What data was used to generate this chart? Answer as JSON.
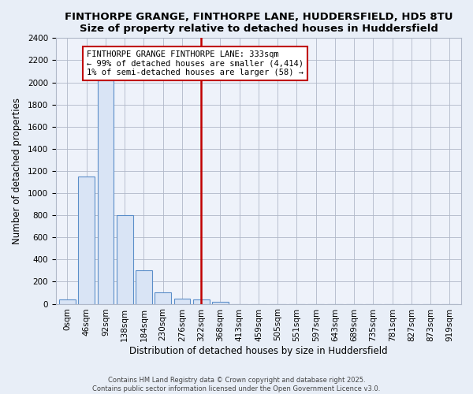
{
  "title": "FINTHORPE GRANGE, FINTHORPE LANE, HUDDERSFIELD, HD5 8TU",
  "subtitle": "Size of property relative to detached houses in Huddersfield",
  "xlabel": "Distribution of detached houses by size in Huddersfield",
  "ylabel": "Number of detached properties",
  "bar_labels": [
    "0sqm",
    "46sqm",
    "92sqm",
    "138sqm",
    "184sqm",
    "230sqm",
    "276sqm",
    "322sqm",
    "368sqm",
    "413sqm",
    "459sqm",
    "505sqm",
    "551sqm",
    "597sqm",
    "643sqm",
    "689sqm",
    "735sqm",
    "781sqm",
    "827sqm",
    "873sqm",
    "919sqm"
  ],
  "bar_values": [
    40,
    1150,
    2020,
    800,
    300,
    105,
    50,
    40,
    20,
    0,
    0,
    0,
    0,
    0,
    0,
    0,
    0,
    0,
    0,
    0,
    0
  ],
  "highlight_index": 7,
  "annotation_line1": "FINTHORPE GRANGE FINTHORPE LANE: 333sqm",
  "annotation_line2": "← 99% of detached houses are smaller (4,414)",
  "annotation_line3": "1% of semi-detached houses are larger (58) →",
  "ylim": [
    0,
    2400
  ],
  "yticks": [
    0,
    200,
    400,
    600,
    800,
    1000,
    1200,
    1400,
    1600,
    1800,
    2000,
    2200,
    2400
  ],
  "bar_color": "#d9e4f5",
  "bar_edge_color": "#5b8ec9",
  "highlight_color": "#c00000",
  "bg_color": "#e8eef7",
  "plot_bg_color": "#eef2fa",
  "annotation_box_bg": "#ffffff",
  "annotation_box_edge": "#c00000",
  "footer_line1": "Contains HM Land Registry data © Crown copyright and database right 2025.",
  "footer_line2": "Contains public sector information licensed under the Open Government Licence v3.0."
}
